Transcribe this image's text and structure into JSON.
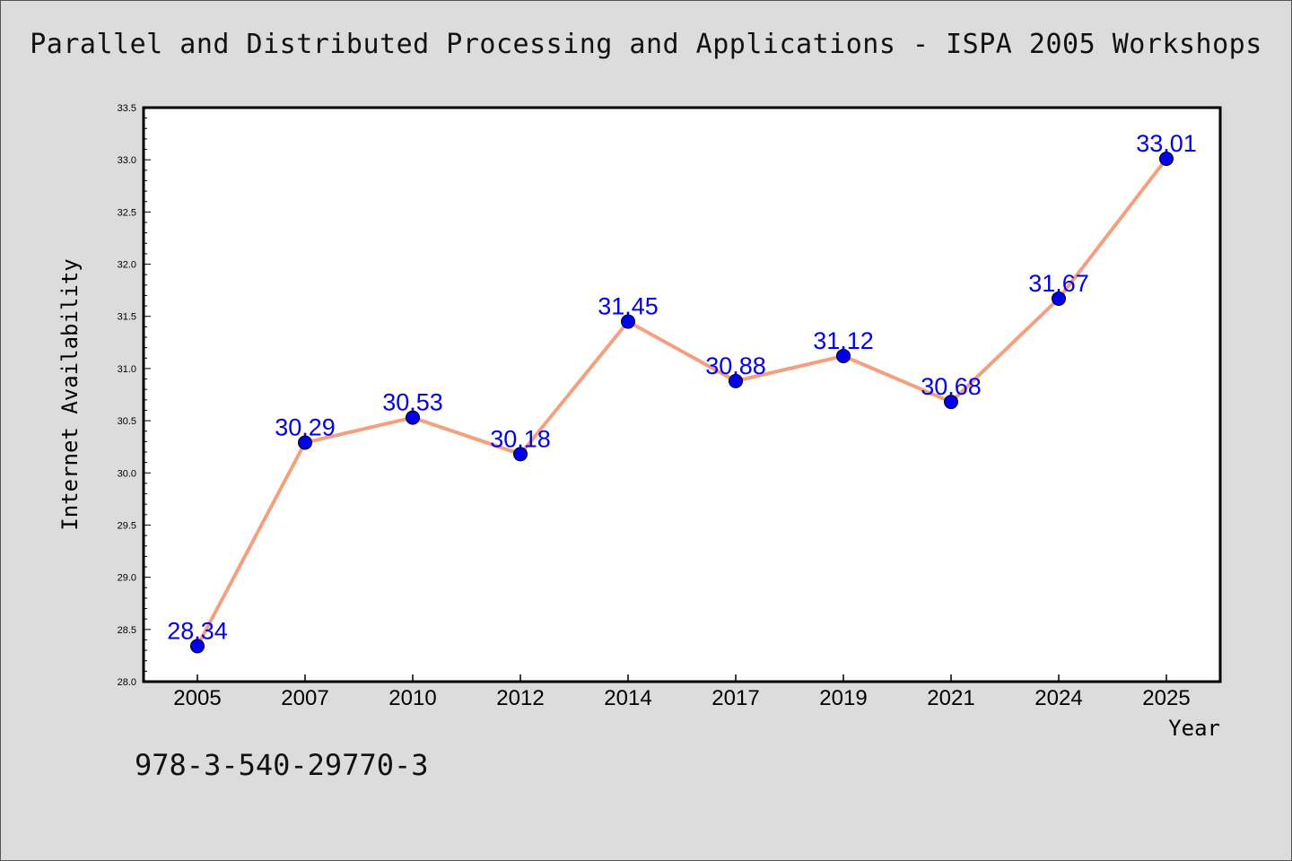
{
  "chart_data": {
    "type": "line",
    "title": "Parallel and Distributed Processing and Applications - ISPA 2005 Workshops",
    "xlabel": "Year",
    "ylabel": "Internet Availability",
    "categories": [
      "2005",
      "2007",
      "2010",
      "2012",
      "2014",
      "2017",
      "2019",
      "2021",
      "2024",
      "2025"
    ],
    "values": [
      28.34,
      30.29,
      30.53,
      30.18,
      31.45,
      30.88,
      31.12,
      30.68,
      31.67,
      33.01
    ],
    "data_labels": [
      "28.34",
      "30.29",
      "30.53",
      "30.18",
      "31.45",
      "30.88",
      "31.12",
      "30.68",
      "31.67",
      "33.01"
    ],
    "ylim": [
      28.0,
      33.5
    ],
    "yticks": [
      "28.0",
      "28.5",
      "29.0",
      "29.5",
      "30.0",
      "30.5",
      "31.0",
      "31.5",
      "32.0",
      "32.5",
      "33.0",
      "33.5"
    ],
    "grid": false,
    "line_color": "#f4a07e",
    "marker_color": "#0000ee",
    "label_color": "#0000ee"
  },
  "footer": {
    "isbn": "978-3-540-29770-3"
  }
}
